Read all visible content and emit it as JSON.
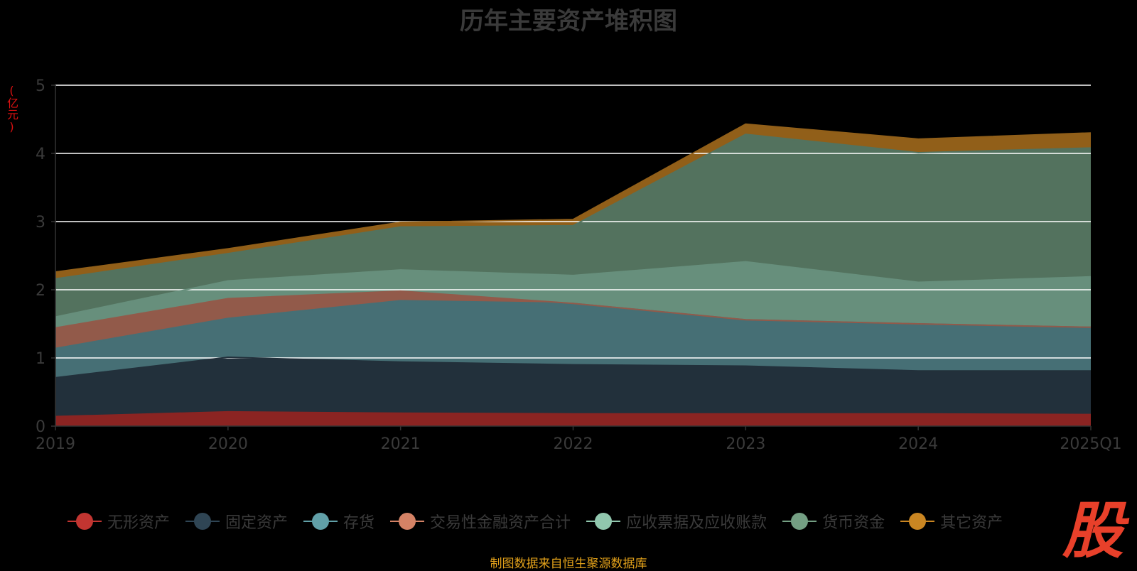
{
  "title": "历年主要资产堆积图",
  "unit": "(亿元)",
  "source": "制图数据来自恒生聚源数据库",
  "logo_text": "股",
  "chart_data": {
    "type": "area",
    "stacked": true,
    "x": [
      "2019",
      "2020",
      "2021",
      "2022",
      "2023",
      "2024",
      "2025Q1"
    ],
    "ylim": [
      0,
      5
    ],
    "yticks": [
      0,
      1,
      2,
      3,
      4,
      5
    ],
    "grid": true,
    "legend_position": "bottom",
    "series": [
      {
        "name": "无形资产",
        "color": "#c23531",
        "fill": "#8b2422",
        "values": [
          0.14,
          0.21,
          0.19,
          0.18,
          0.18,
          0.18,
          0.17
        ]
      },
      {
        "name": "固定资产",
        "color": "#2f4554",
        "fill": "#22303b",
        "values": [
          0.57,
          0.8,
          0.75,
          0.72,
          0.7,
          0.63,
          0.64
        ]
      },
      {
        "name": "存货",
        "color": "#61a0a8",
        "fill": "#466f75",
        "values": [
          0.43,
          0.57,
          0.9,
          0.9,
          0.68,
          0.69,
          0.64
        ]
      },
      {
        "name": "交易性金融资产合计",
        "color": "#d48265",
        "fill": "#925a4a",
        "values": [
          0.3,
          0.29,
          0.14,
          0.0,
          0.0,
          0.0,
          0.0
        ]
      },
      {
        "name": "应收票据及应收账款",
        "color": "#91c7ae",
        "fill": "#678f7c",
        "values": [
          0.16,
          0.26,
          0.31,
          0.41,
          0.85,
          0.61,
          0.74
        ]
      },
      {
        "name": "货币资金",
        "color": "#749f83",
        "fill": "#53725e",
        "values": [
          0.56,
          0.4,
          0.63,
          0.73,
          1.87,
          1.9,
          1.89
        ]
      },
      {
        "name": "其它资产",
        "color": "#ca8622",
        "fill": "#915f19",
        "values": [
          0.1,
          0.07,
          0.07,
          0.09,
          0.15,
          0.2,
          0.22
        ]
      }
    ]
  }
}
